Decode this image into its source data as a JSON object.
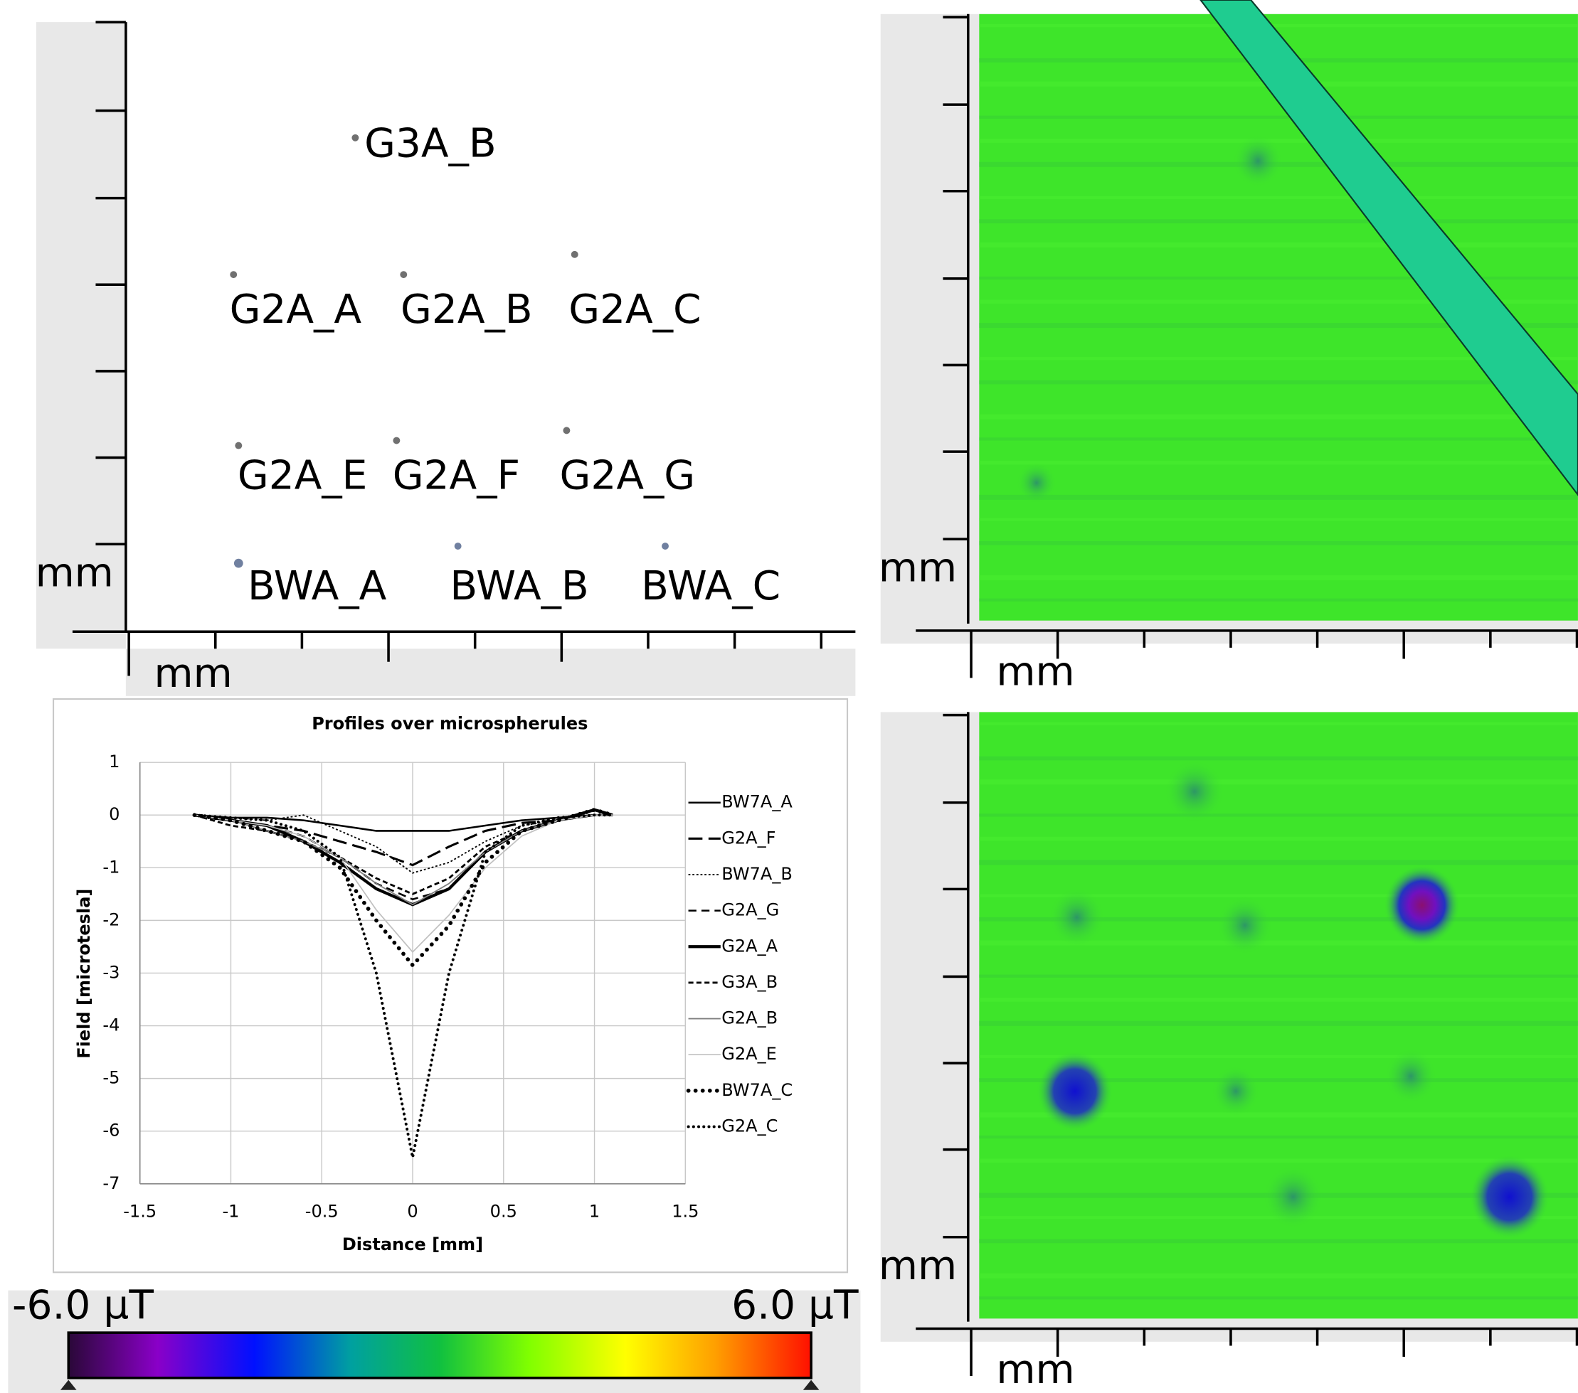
{
  "map_panel": {
    "samples": [
      "G3A_B",
      "G2A_A",
      "G2A_B",
      "G2A_C",
      "G2A_E",
      "G2A_F",
      "G2A_G",
      "BWA_A",
      "BWA_B",
      "BWA_C"
    ],
    "y_unit": "mm",
    "x_unit": "mm"
  },
  "scan_top": {
    "y_unit": "mm",
    "x_unit": "mm"
  },
  "scan_bottom": {
    "y_unit": "mm",
    "x_unit": "mm"
  },
  "colorbar": {
    "min_label": "-6.0 µT",
    "max_label": "6.0 µT"
  },
  "chart_data": {
    "type": "line",
    "title": "Profiles over microspherules",
    "x_label": "Distance [mm]",
    "y_label": "Field [microtesla]",
    "x": [
      -1.2,
      -1,
      -0.8,
      -0.6,
      -0.4,
      -0.2,
      0,
      0.2,
      0.4,
      0.6,
      0.8,
      1,
      1.1
    ],
    "series": [
      {
        "name": "BW7A_A",
        "color": "#000000",
        "values": [
          0,
          -0.05,
          -0.05,
          -0.1,
          -0.2,
          -0.3,
          -0.3,
          -0.3,
          -0.2,
          -0.1,
          -0.05,
          0,
          0
        ]
      },
      {
        "name": "G2A_F",
        "color": "#000000",
        "values": [
          0,
          -0.1,
          -0.2,
          -0.3,
          -0.5,
          -0.7,
          -0.95,
          -0.6,
          -0.3,
          -0.15,
          -0.1,
          0,
          0
        ]
      },
      {
        "name": "BW7A_B",
        "color": "#000000",
        "values": [
          0,
          -0.05,
          -0.1,
          0,
          -0.3,
          -0.6,
          -1.1,
          -0.9,
          -0.5,
          -0.2,
          -0.1,
          0,
          0
        ]
      },
      {
        "name": "G2A_G",
        "color": "#000000",
        "values": [
          0,
          -0.1,
          -0.2,
          -0.4,
          -0.8,
          -1.3,
          -1.6,
          -1.4,
          -0.7,
          -0.3,
          -0.1,
          0,
          0
        ]
      },
      {
        "name": "G2A_A",
        "color": "#000000",
        "values": [
          0,
          -0.1,
          -0.2,
          -0.5,
          -0.9,
          -1.4,
          -1.7,
          -1.4,
          -0.7,
          -0.3,
          -0.1,
          0.1,
          0
        ]
      },
      {
        "name": "G3A_B",
        "color": "#000000",
        "values": [
          0,
          -0.2,
          -0.3,
          -0.5,
          -0.8,
          -1.2,
          -1.5,
          -1.2,
          -0.6,
          -0.3,
          -0.1,
          0,
          0
        ]
      },
      {
        "name": "G2A_B",
        "color": "#808080",
        "values": [
          0,
          -0.1,
          -0.3,
          -0.5,
          -0.8,
          -1.3,
          -1.7,
          -1.3,
          -0.7,
          -0.3,
          -0.1,
          0,
          0
        ]
      },
      {
        "name": "G2A_E",
        "color": "#c0c0c0",
        "values": [
          0,
          -0.1,
          -0.2,
          -0.4,
          -0.8,
          -1.8,
          -2.6,
          -1.9,
          -1,
          -0.4,
          -0.1,
          0,
          0
        ]
      },
      {
        "name": "BW7A_C",
        "color": "#000000",
        "values": [
          0,
          -0.1,
          -0.3,
          -0.5,
          -1,
          -2,
          -2.85,
          -2.1,
          -0.9,
          -0.3,
          -0.1,
          0.1,
          0
        ]
      },
      {
        "name": "G2A_C",
        "color": "#000000",
        "values": [
          0,
          -0.05,
          -0.1,
          -0.3,
          -0.8,
          -3,
          -6.5,
          -3,
          -0.7,
          -0.2,
          -0.05,
          0,
          0
        ]
      }
    ],
    "xlim": [
      -1.5,
      1.5
    ],
    "xticks": [
      -1.5,
      -1,
      -0.5,
      0,
      0.5,
      1,
      1.5
    ],
    "ylim": [
      -7,
      1
    ],
    "yticks": [
      -7,
      -6,
      -5,
      -4,
      -3,
      -2,
      -1,
      0,
      1
    ],
    "grid": true
  }
}
